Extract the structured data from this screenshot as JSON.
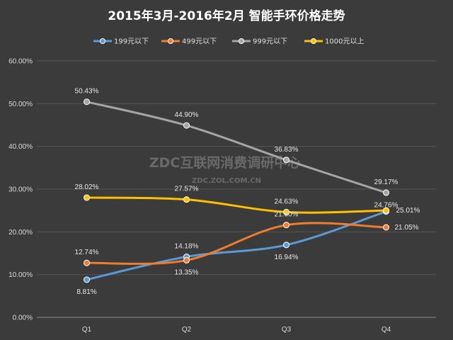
{
  "chart_data": {
    "type": "line",
    "title": "2015年3月-2016年2月  智能手环价格走势",
    "categories": [
      "Q1",
      "Q2",
      "Q3",
      "Q4"
    ],
    "ylim": [
      0,
      0.6
    ],
    "yticks": [
      "0.00%",
      "10.00%",
      "20.00%",
      "30.00%",
      "40.00%",
      "50.00%",
      "60.00%"
    ],
    "grid": true,
    "legend_position": "top",
    "series": [
      {
        "name": "199元以下",
        "color": "#5b9bd5",
        "values": [
          0.0881,
          0.1418,
          0.1694,
          0.2476
        ],
        "labels": [
          "8.81%",
          "14.18%",
          "16.94%",
          "24.76%"
        ]
      },
      {
        "name": "499元以下",
        "color": "#ed7d31",
        "values": [
          0.1274,
          0.1335,
          0.216,
          0.2105
        ],
        "labels": [
          "12.74%",
          "13.35%",
          "21.60%",
          "21.05%"
        ]
      },
      {
        "name": "999元以下",
        "color": "#a5a5a5",
        "values": [
          0.5043,
          0.449,
          0.3683,
          0.2917
        ],
        "labels": [
          "50.43%",
          "44.90%",
          "36.83%",
          "29.17%"
        ]
      },
      {
        "name": "1000元以上",
        "color": "#ffc000",
        "values": [
          0.2802,
          0.2757,
          0.2463,
          0.2501
        ],
        "labels": [
          "28.02%",
          "27.57%",
          "24.63%",
          "25.01%"
        ]
      }
    ]
  },
  "watermark": {
    "line1": "ZDC互联网消费调研中心",
    "line2": "ZDC.ZOL.COM.CN"
  }
}
